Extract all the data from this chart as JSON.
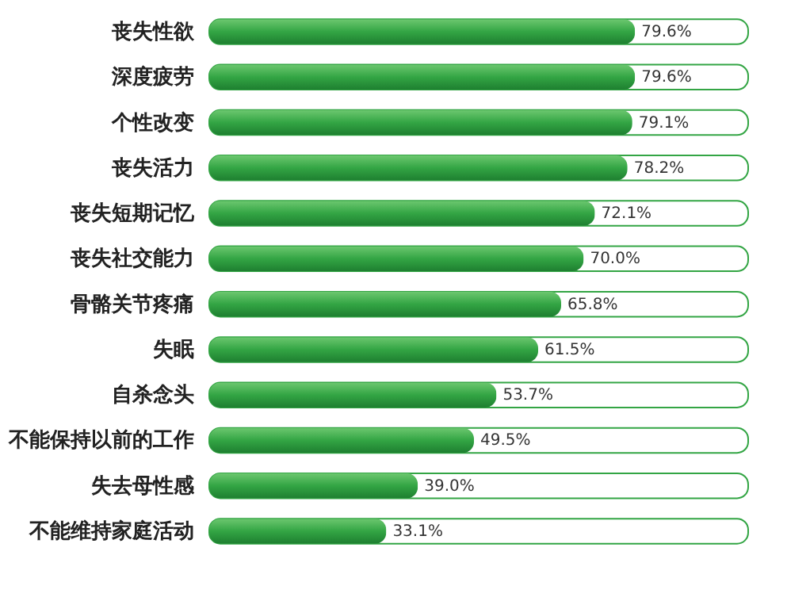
{
  "chart_data": {
    "type": "bar",
    "orientation": "horizontal",
    "categories": [
      "丧失性欲",
      "深度疲劳",
      "个性改变",
      "丧失活力",
      "丧失短期记忆",
      "丧失社交能力",
      "骨骼关节疼痛",
      "失眠",
      "自杀念头",
      "不能保持以前的工作",
      "失去母性感",
      "不能维持家庭活动"
    ],
    "values": [
      79.6,
      79.6,
      79.1,
      78.2,
      72.1,
      70.0,
      65.8,
      61.5,
      53.7,
      49.5,
      39.0,
      33.1
    ],
    "value_labels": [
      "79.6%",
      "79.6%",
      "79.1%",
      "78.2%",
      "72.1%",
      "70.0%",
      "65.8%",
      "61.5%",
      "53.7%",
      "49.5%",
      "39.0%",
      "33.1%"
    ],
    "color": "#33a544",
    "tick_labels": "y"
  }
}
